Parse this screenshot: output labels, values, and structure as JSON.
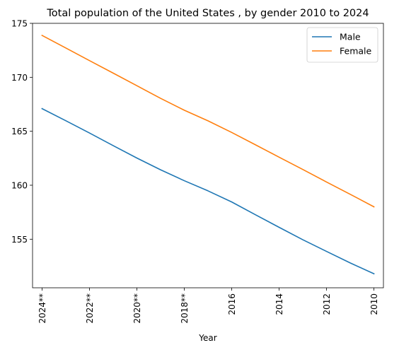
{
  "chart_data": {
    "type": "line",
    "title": "Total population of the United States , by gender 2010 to 2024",
    "xlabel": "Year",
    "ylabel": "",
    "categories": [
      "2024**",
      "2022**",
      "2020**",
      "2018**",
      "2016",
      "2014",
      "2012",
      "2010"
    ],
    "x_positions": [
      2024,
      2022,
      2020,
      2018,
      2016,
      2014,
      2012,
      2010
    ],
    "x_range": [
      2024.4,
      2009.6
    ],
    "ylim": [
      150.5,
      175
    ],
    "yticks": [
      155,
      160,
      165,
      170,
      175
    ],
    "x": [
      2024,
      2023,
      2022,
      2021,
      2020,
      2019,
      2018,
      2017,
      2016,
      2015,
      2014,
      2013,
      2012,
      2011,
      2010
    ],
    "series": [
      {
        "name": "Male",
        "color": "#1f77b4",
        "values": [
          167.1,
          165.98,
          164.84,
          163.67,
          162.52,
          161.43,
          160.42,
          159.48,
          158.45,
          157.27,
          156.1,
          154.95,
          153.87,
          152.8,
          151.8
        ]
      },
      {
        "name": "Female",
        "color": "#ff7f0e",
        "values": [
          173.88,
          172.72,
          171.55,
          170.39,
          169.22,
          168.05,
          166.95,
          165.97,
          164.89,
          163.75,
          162.6,
          161.46,
          160.3,
          159.16,
          158.0
        ]
      }
    ],
    "grid": false,
    "legend_position": "top-right"
  }
}
